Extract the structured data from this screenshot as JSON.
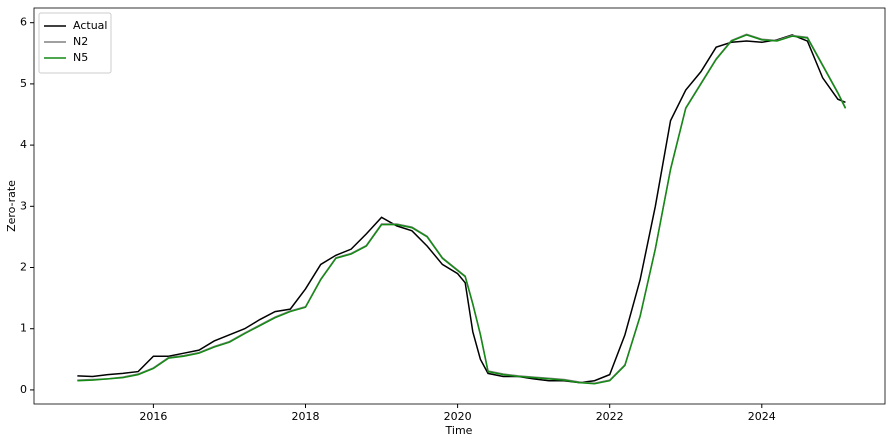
{
  "chart_data": {
    "type": "line",
    "x_label": "Time",
    "y_label": "Zero-rate",
    "x": [
      2015.0,
      2015.2,
      2015.4,
      2015.6,
      2015.8,
      2016.0,
      2016.2,
      2016.4,
      2016.6,
      2016.8,
      2017.0,
      2017.2,
      2017.4,
      2017.6,
      2017.8,
      2018.0,
      2018.2,
      2018.4,
      2018.6,
      2018.8,
      2019.0,
      2019.2,
      2019.4,
      2019.6,
      2019.8,
      2020.0,
      2020.1,
      2020.2,
      2020.3,
      2020.4,
      2020.6,
      2020.8,
      2021.0,
      2021.2,
      2021.4,
      2021.6,
      2021.8,
      2022.0,
      2022.2,
      2022.4,
      2022.6,
      2022.8,
      2023.0,
      2023.2,
      2023.4,
      2023.6,
      2023.8,
      2024.0,
      2024.2,
      2024.4,
      2024.6,
      2024.8,
      2025.0,
      2025.1
    ],
    "series": [
      {
        "name": "Actual",
        "color": "#000000",
        "values": [
          0.23,
          0.22,
          0.25,
          0.27,
          0.3,
          0.55,
          0.55,
          0.6,
          0.65,
          0.8,
          0.9,
          1.0,
          1.15,
          1.28,
          1.32,
          1.65,
          2.05,
          2.2,
          2.3,
          2.55,
          2.82,
          2.68,
          2.6,
          2.35,
          2.05,
          1.9,
          1.75,
          0.95,
          0.5,
          0.27,
          0.22,
          0.22,
          0.18,
          0.15,
          0.15,
          0.12,
          0.15,
          0.25,
          0.9,
          1.8,
          3.0,
          4.4,
          4.9,
          5.2,
          5.6,
          5.68,
          5.7,
          5.68,
          5.72,
          5.8,
          5.7,
          5.1,
          4.75,
          4.7
        ]
      },
      {
        "name": "N2",
        "color": "#808080",
        "values": [
          0.16,
          0.17,
          0.18,
          0.21,
          0.26,
          0.36,
          0.53,
          0.56,
          0.61,
          0.71,
          0.79,
          0.93,
          1.06,
          1.19,
          1.29,
          1.36,
          1.81,
          2.16,
          2.23,
          2.36,
          2.71,
          2.71,
          2.66,
          2.51,
          2.16,
          1.96,
          1.86,
          1.41,
          0.91,
          0.31,
          0.26,
          0.23,
          0.21,
          0.19,
          0.17,
          0.13,
          0.11,
          0.16,
          0.41,
          1.21,
          2.31,
          3.61,
          4.61,
          5.01,
          5.41,
          5.71,
          5.81,
          5.73,
          5.71,
          5.79,
          5.76,
          5.31,
          4.86,
          4.61
        ]
      },
      {
        "name": "N5",
        "color": "#138a13",
        "values": [
          0.15,
          0.16,
          0.18,
          0.2,
          0.25,
          0.35,
          0.52,
          0.55,
          0.6,
          0.7,
          0.78,
          0.92,
          1.05,
          1.18,
          1.28,
          1.35,
          1.8,
          2.15,
          2.22,
          2.35,
          2.7,
          2.7,
          2.65,
          2.5,
          2.15,
          1.95,
          1.85,
          1.4,
          0.9,
          0.3,
          0.25,
          0.22,
          0.2,
          0.18,
          0.16,
          0.12,
          0.1,
          0.15,
          0.4,
          1.2,
          2.3,
          3.6,
          4.6,
          5.0,
          5.4,
          5.7,
          5.8,
          5.72,
          5.7,
          5.78,
          5.75,
          5.3,
          4.85,
          4.6
        ]
      }
    ],
    "xlim": [
      2014.43,
      2025.62
    ],
    "xticks": [
      2016,
      2018,
      2020,
      2022,
      2024
    ],
    "ylim": [
      -0.23,
      6.24
    ],
    "yticks": [
      0,
      1,
      2,
      3,
      4,
      5,
      6
    ],
    "grid": false,
    "legend": "upper left"
  }
}
